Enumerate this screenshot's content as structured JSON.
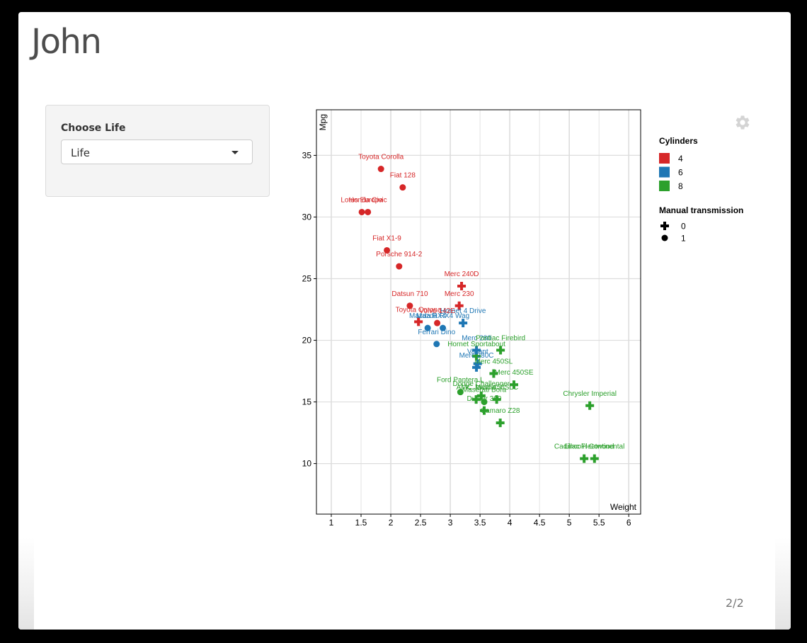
{
  "page": {
    "title": "John",
    "page_number": "2/2"
  },
  "control": {
    "label": "Choose Life",
    "selected": "Life"
  },
  "icons": {
    "settings": "gear-icon",
    "dropdown": "chevron-down-icon"
  },
  "colors": {
    "cyl4": "#d62728",
    "cyl6": "#1f77b4",
    "cyl8": "#2ca02c",
    "grid": "#dddddd",
    "title": "#4d4d4d"
  },
  "chart_data": {
    "type": "scatter",
    "xlabel": "Weight",
    "ylabel": "Mpg",
    "xlim": [
      0.75,
      6.2
    ],
    "ylim": [
      5.9,
      38.7
    ],
    "xticks": [
      1,
      1.5,
      2,
      2.5,
      3,
      3.5,
      4,
      4.5,
      5,
      5.5,
      6
    ],
    "yticks": [
      10,
      15,
      20,
      25,
      30,
      35
    ],
    "grid": true,
    "legend": {
      "color_title": "Cylinders",
      "color_entries": [
        "4",
        "6",
        "8"
      ],
      "shape_title": "Manual transmission",
      "shape_entries": [
        "0",
        "1"
      ],
      "placement": "right"
    },
    "points": [
      {
        "name": "Mazda RX4",
        "wt": 2.62,
        "mpg": 21.0,
        "cyl": "6",
        "am": "1"
      },
      {
        "name": "Mazda RX4 Wag",
        "wt": 2.875,
        "mpg": 21.0,
        "cyl": "6",
        "am": "1"
      },
      {
        "name": "Datsun 710",
        "wt": 2.32,
        "mpg": 22.8,
        "cyl": "4",
        "am": "1"
      },
      {
        "name": "Hornet 4 Drive",
        "wt": 3.215,
        "mpg": 21.4,
        "cyl": "6",
        "am": "0"
      },
      {
        "name": "Hornet Sportabout",
        "wt": 3.44,
        "mpg": 18.7,
        "cyl": "8",
        "am": "0"
      },
      {
        "name": "Valiant",
        "wt": 3.46,
        "mpg": 18.1,
        "cyl": "6",
        "am": "0"
      },
      {
        "name": "Duster 360",
        "wt": 3.57,
        "mpg": 14.3,
        "cyl": "8",
        "am": "0"
      },
      {
        "name": "Merc 240D",
        "wt": 3.19,
        "mpg": 24.4,
        "cyl": "4",
        "am": "0"
      },
      {
        "name": "Merc 230",
        "wt": 3.15,
        "mpg": 22.8,
        "cyl": "4",
        "am": "0"
      },
      {
        "name": "Merc 280",
        "wt": 3.44,
        "mpg": 19.2,
        "cyl": "6",
        "am": "0"
      },
      {
        "name": "Merc 280C",
        "wt": 3.44,
        "mpg": 17.8,
        "cyl": "6",
        "am": "0"
      },
      {
        "name": "Merc 450SE",
        "wt": 4.07,
        "mpg": 16.4,
        "cyl": "8",
        "am": "0"
      },
      {
        "name": "Merc 450SL",
        "wt": 3.73,
        "mpg": 17.3,
        "cyl": "8",
        "am": "0"
      },
      {
        "name": "Merc 450SLC",
        "wt": 3.78,
        "mpg": 15.2,
        "cyl": "8",
        "am": "0"
      },
      {
        "name": "Cadillac Fleetwood",
        "wt": 5.25,
        "mpg": 10.4,
        "cyl": "8",
        "am": "0"
      },
      {
        "name": "Lincoln Continental",
        "wt": 5.424,
        "mpg": 10.4,
        "cyl": "8",
        "am": "0"
      },
      {
        "name": "Chrysler Imperial",
        "wt": 5.345,
        "mpg": 14.7,
        "cyl": "8",
        "am": "0"
      },
      {
        "name": "Fiat 128",
        "wt": 2.2,
        "mpg": 32.4,
        "cyl": "4",
        "am": "1"
      },
      {
        "name": "Honda Civic",
        "wt": 1.615,
        "mpg": 30.4,
        "cyl": "4",
        "am": "1"
      },
      {
        "name": "Toyota Corolla",
        "wt": 1.835,
        "mpg": 33.9,
        "cyl": "4",
        "am": "1"
      },
      {
        "name": "Toyota Corona",
        "wt": 2.465,
        "mpg": 21.5,
        "cyl": "4",
        "am": "0"
      },
      {
        "name": "Dodge Challenger",
        "wt": 3.52,
        "mpg": 15.5,
        "cyl": "8",
        "am": "0"
      },
      {
        "name": "AMC Javelin",
        "wt": 3.435,
        "mpg": 15.2,
        "cyl": "8",
        "am": "0"
      },
      {
        "name": "Camaro Z28",
        "wt": 3.84,
        "mpg": 13.3,
        "cyl": "8",
        "am": "0"
      },
      {
        "name": "Pontiac Firebird",
        "wt": 3.845,
        "mpg": 19.2,
        "cyl": "8",
        "am": "0"
      },
      {
        "name": "Fiat X1-9",
        "wt": 1.935,
        "mpg": 27.3,
        "cyl": "4",
        "am": "1"
      },
      {
        "name": "Porsche 914-2",
        "wt": 2.14,
        "mpg": 26.0,
        "cyl": "4",
        "am": "1"
      },
      {
        "name": "Lotus Europa",
        "wt": 1.513,
        "mpg": 30.4,
        "cyl": "4",
        "am": "1"
      },
      {
        "name": "Ford Pantera L",
        "wt": 3.17,
        "mpg": 15.8,
        "cyl": "8",
        "am": "1"
      },
      {
        "name": "Ferrari Dino",
        "wt": 2.77,
        "mpg": 19.7,
        "cyl": "6",
        "am": "1"
      },
      {
        "name": "Maserati Bora",
        "wt": 3.57,
        "mpg": 15.0,
        "cyl": "8",
        "am": "1"
      },
      {
        "name": "Volvo 142E",
        "wt": 2.78,
        "mpg": 21.4,
        "cyl": "4",
        "am": "1"
      }
    ]
  }
}
